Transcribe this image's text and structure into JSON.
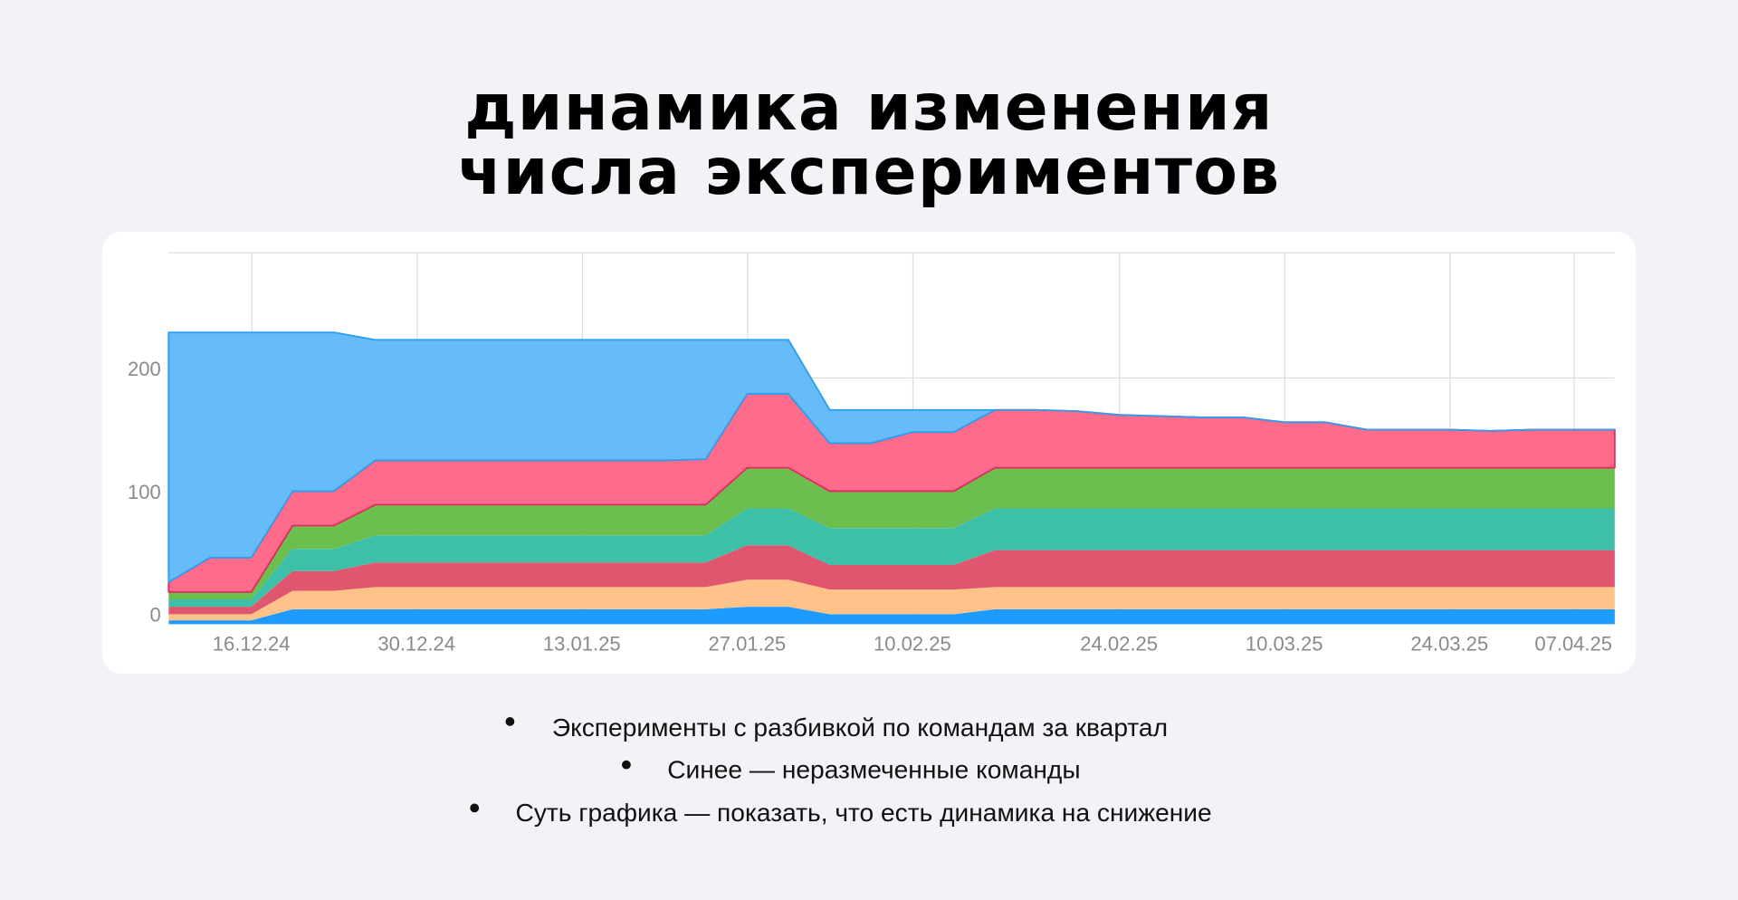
{
  "header": {
    "title_lines": [
      "динамика изменения",
      "числа экспериментов"
    ]
  },
  "chart_data": {
    "type": "stacked-area",
    "categories": [
      null,
      null,
      "16.12.24",
      null,
      null,
      null,
      "30.12.24",
      null,
      null,
      null,
      "13.01.25",
      null,
      null,
      null,
      "27.01.25",
      null,
      null,
      null,
      "10.02.25",
      null,
      null,
      null,
      null,
      "24.02.25",
      null,
      null,
      null,
      "10.03.25",
      null,
      null,
      null,
      "24.03.25",
      null,
      null,
      "07.04.25",
      null
    ],
    "ylim": [
      0,
      300
    ],
    "yticks": [
      0,
      100,
      200
    ],
    "grid": true,
    "series": [
      {
        "color": "#1e9bff",
        "values": [
          3,
          3,
          3,
          12,
          12,
          12,
          12,
          12,
          12,
          12,
          12,
          12,
          12,
          12,
          14,
          14,
          8,
          8,
          8,
          8,
          12,
          12,
          12,
          12,
          12,
          12,
          12,
          12,
          12,
          12,
          12,
          12,
          12,
          12,
          12,
          12
        ]
      },
      {
        "color": "#ffc38a",
        "values": [
          5,
          5,
          5,
          15,
          15,
          18,
          18,
          18,
          18,
          18,
          18,
          18,
          18,
          18,
          22,
          22,
          20,
          20,
          20,
          20,
          18,
          18,
          18,
          18,
          18,
          18,
          18,
          18,
          18,
          18,
          18,
          18,
          18,
          18,
          18,
          18
        ]
      },
      {
        "color": "#e0566e",
        "values": [
          6,
          6,
          6,
          16,
          16,
          20,
          20,
          20,
          20,
          20,
          20,
          20,
          20,
          20,
          28,
          28,
          20,
          20,
          20,
          20,
          30,
          30,
          30,
          30,
          30,
          30,
          30,
          30,
          30,
          30,
          30,
          30,
          30,
          30,
          30,
          30
        ]
      },
      {
        "color": "#3dbfa8",
        "values": [
          6,
          6,
          6,
          18,
          18,
          22,
          22,
          22,
          22,
          22,
          22,
          22,
          22,
          22,
          30,
          30,
          30,
          30,
          30,
          30,
          34,
          34,
          34,
          34,
          34,
          34,
          34,
          34,
          34,
          34,
          34,
          34,
          34,
          34,
          34,
          34
        ]
      },
      {
        "color": "#6cbf4e",
        "values": [
          6,
          6,
          6,
          19,
          19,
          25,
          25,
          25,
          25,
          25,
          25,
          25,
          25,
          25,
          33,
          33,
          30,
          30,
          30,
          30,
          33,
          33,
          33,
          33,
          33,
          33,
          33,
          33,
          33,
          33,
          33,
          33,
          33,
          33,
          33,
          33
        ]
      },
      {
        "color": "#ff6b8a",
        "values": [
          8,
          28,
          28,
          28,
          28,
          36,
          36,
          36,
          36,
          36,
          36,
          36,
          36,
          37,
          60,
          60,
          39,
          39,
          48,
          48,
          47,
          47,
          46,
          43,
          42,
          41,
          41,
          37,
          37,
          31,
          31,
          31,
          30,
          31,
          31,
          31
        ]
      },
      {
        "color": "#66bbf9",
        "values": [
          203,
          183,
          183,
          129,
          129,
          98,
          98,
          98,
          98,
          98,
          98,
          98,
          98,
          97,
          44,
          44,
          27,
          27,
          18,
          18,
          0,
          0,
          0,
          0,
          0,
          0,
          0,
          0,
          0,
          0,
          0,
          0,
          0,
          0,
          0,
          0
        ]
      }
    ]
  },
  "notes": [
    "Эксперименты с разбивкой по командам за квартал",
    "Синее — неразмеченные команды",
    "Суть графика — показать, что есть динамика на снижение"
  ]
}
